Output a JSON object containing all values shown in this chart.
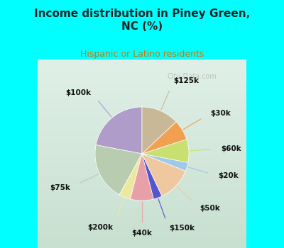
{
  "title": "Income distribution in Piney Green,\nNC (%)",
  "subtitle": "Hispanic or Latino residents",
  "background_color": "#00FFFF",
  "labels": [
    "$100k",
    "$75k",
    "$200k",
    "$40k",
    "$150k",
    "$50k",
    "$20k",
    "$60k",
    "$30k",
    "$125k"
  ],
  "sizes": [
    22,
    20,
    4,
    8,
    3,
    12,
    3,
    8,
    7,
    13
  ],
  "colors": [
    "#b09cc8",
    "#b8ccb0",
    "#ede8a0",
    "#e8a0a8",
    "#5555cc",
    "#f0c8a0",
    "#a0c8e8",
    "#c8e070",
    "#f0a050",
    "#c8b898"
  ],
  "start_angle": 90,
  "watermark": "City-Data.com",
  "chart_bg_gradient_top": "#e0f0e8",
  "chart_bg_gradient_bottom": "#c8e0d0"
}
